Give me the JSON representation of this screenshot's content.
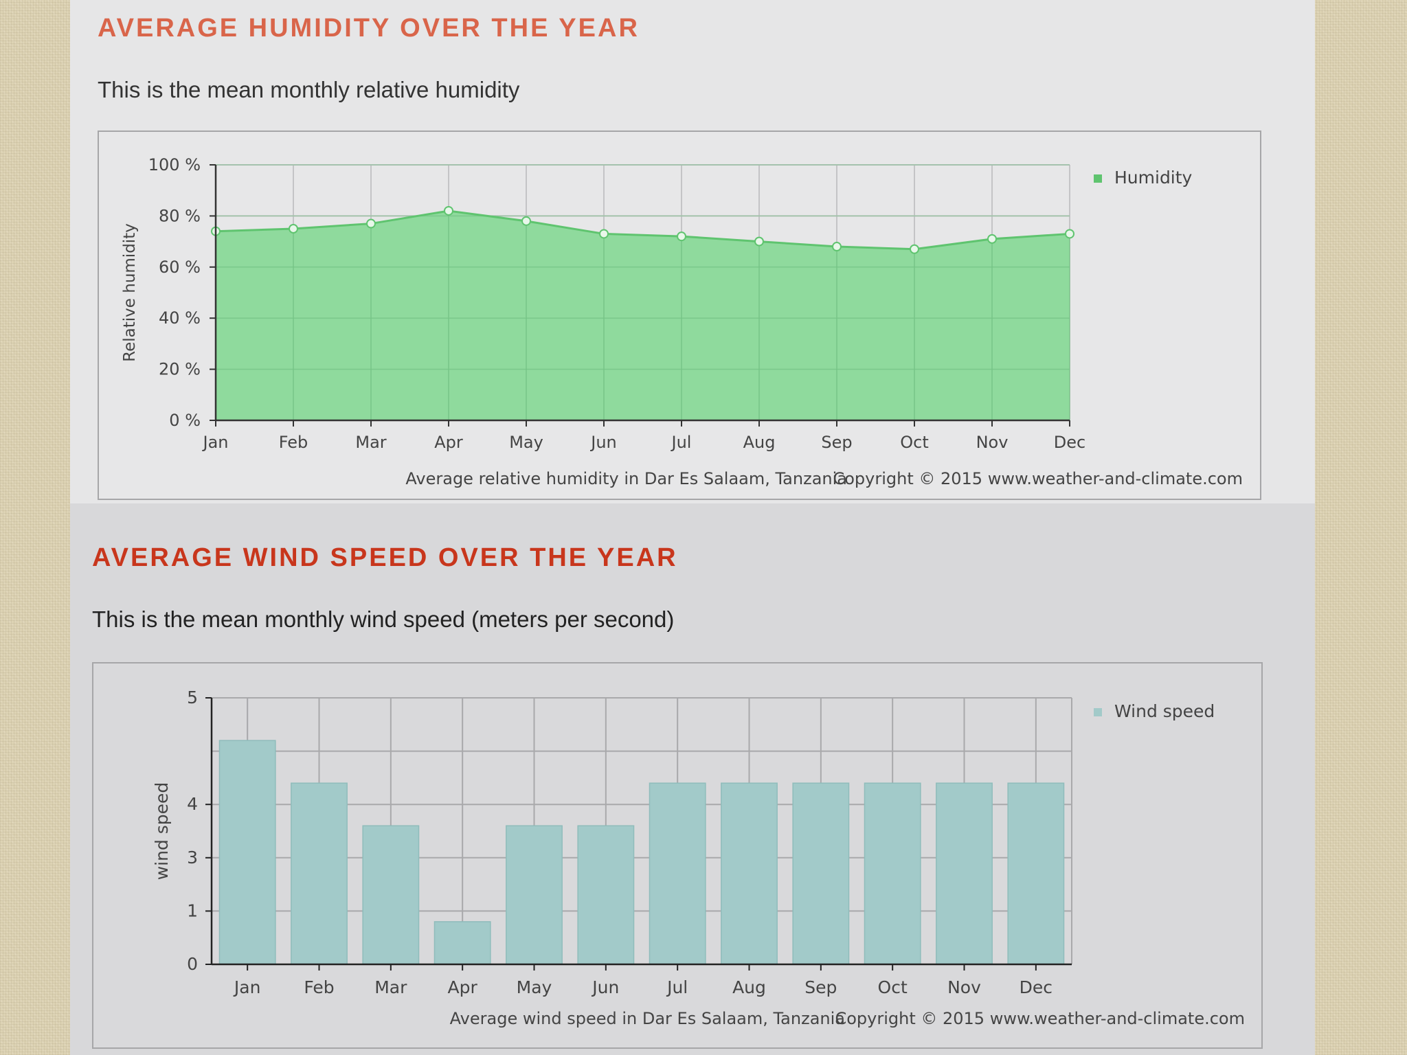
{
  "sections": [
    {
      "title": "AVERAGE HUMIDITY OVER THE YEAR",
      "subtitle": "This is the mean monthly relative humidity",
      "title_color": "#d9654a",
      "caption": "Average relative humidity in Dar Es Salaam, Tanzania",
      "copyright": "Copyright © 2015 www.weather-and-climate.com"
    },
    {
      "title": "AVERAGE WIND SPEED OVER THE YEAR",
      "subtitle": "This is the mean monthly wind speed (meters per second)",
      "title_color": "#c8361c",
      "caption": "Average wind speed in Dar Es Salaam, Tanzania",
      "copyright": "Copyright © 2015 www.weather-and-climate.com"
    }
  ],
  "chart_data": [
    {
      "type": "area",
      "categories": [
        "Jan",
        "Feb",
        "Mar",
        "Apr",
        "May",
        "Jun",
        "Jul",
        "Aug",
        "Sep",
        "Oct",
        "Nov",
        "Dec"
      ],
      "series": [
        {
          "name": "Humidity",
          "values": [
            74,
            75,
            77,
            82,
            78,
            73,
            72,
            70,
            68,
            67,
            71,
            73
          ],
          "color": "#7fd78f"
        }
      ],
      "ylabel": "Relative humidity",
      "ylim": [
        0,
        100
      ],
      "yticks": [
        "0 %",
        "20 %",
        "40 %",
        "60 %",
        "80 %",
        "100 %"
      ],
      "grid": true,
      "legend": "top-right"
    },
    {
      "type": "bar",
      "categories": [
        "Jan",
        "Feb",
        "Mar",
        "Apr",
        "May",
        "Jun",
        "Jul",
        "Aug",
        "Sep",
        "Oct",
        "Nov",
        "Dec"
      ],
      "series": [
        {
          "name": "Wind speed",
          "values": [
            4.2,
            3.4,
            2.6,
            0.8,
            2.6,
            2.6,
            3.4,
            3.4,
            3.4,
            3.4,
            3.4,
            3.4
          ],
          "color": "#a2cac9"
        }
      ],
      "ylabel": "wind speed",
      "ylim": [
        0,
        5
      ],
      "yticks": [
        "0",
        "1",
        "3",
        "4",
        "5"
      ],
      "grid": true,
      "legend": "top-right"
    }
  ]
}
